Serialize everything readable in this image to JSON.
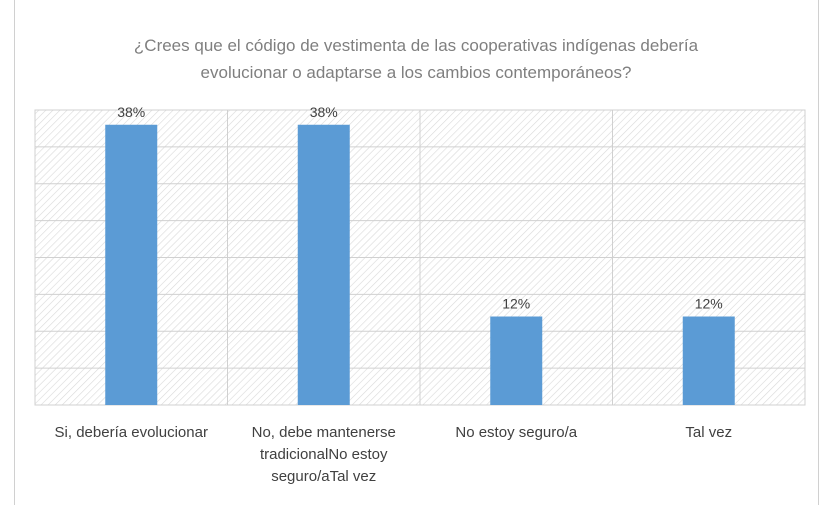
{
  "chart_data": {
    "type": "bar",
    "title": "¿Crees que el código de vestimenta de las cooperativas indígenas debería evolucionar o adaptarse a los cambios contemporáneos?",
    "categories": [
      "Si, debería evolucionar",
      "No, debe mantenerse tradicionalNo estoy seguro/aTal vez",
      "No estoy seguro/a",
      "Tal vez"
    ],
    "values": [
      38,
      38,
      12,
      12
    ],
    "value_labels": [
      "38%",
      "38%",
      "12%",
      "12%"
    ],
    "color": "#5b9bd5",
    "ylim": [
      0,
      40
    ],
    "yticks": [
      0,
      5,
      10,
      15,
      20,
      25,
      30,
      35,
      40
    ],
    "grid": true
  }
}
